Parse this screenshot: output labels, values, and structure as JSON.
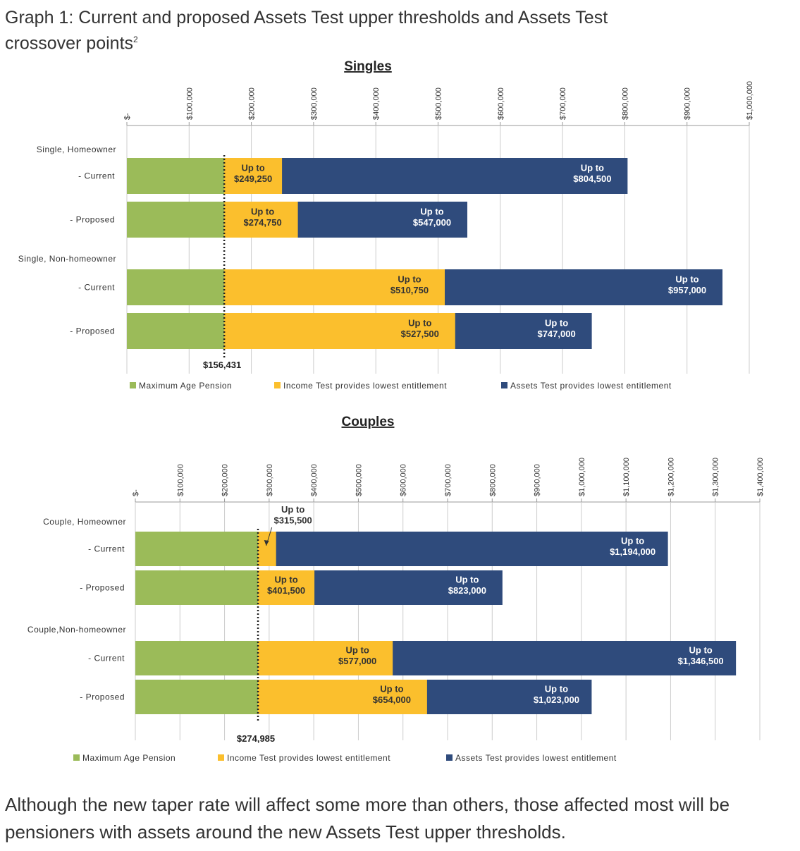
{
  "title": "Graph 1: Current and proposed Assets Test upper thresholds and Assets Test crossover points",
  "title_superscript": "2",
  "chart_data": [
    {
      "type": "bar",
      "orientation": "horizontal",
      "title": "Singles",
      "groups": [
        "Single, Homeowner",
        "Single, Non-homeowner"
      ],
      "categories": [
        "- Current",
        "- Proposed",
        "- Current",
        "- Proposed"
      ],
      "series": [
        {
          "name": "Maximum Age Pension",
          "color": "#9bbb59",
          "values": [
            156431,
            156431,
            156431,
            156431
          ]
        },
        {
          "name": "Income Test provides lowest entitlement",
          "color": "#fbbf2d",
          "values": [
            249250,
            274750,
            510750,
            527500
          ],
          "value_labels": [
            "Up to $249,250",
            "Up to $274,750",
            "Up to $510,750",
            "Up to $527,500"
          ]
        },
        {
          "name": "Assets Test provides lowest entitlement",
          "color": "#2f4b7c",
          "values": [
            804500,
            547000,
            957000,
            747000
          ],
          "value_labels": [
            "Up to $804,500",
            "Up to $547,000",
            "Up to $957,000",
            "Up to $747,000"
          ]
        }
      ],
      "crossover": {
        "value": 156431,
        "label": "$156,431"
      },
      "xlim": [
        0,
        1000000
      ],
      "xticks": [
        {
          "value": 0,
          "label": "$-"
        },
        {
          "value": 100000,
          "label": "$100,000"
        },
        {
          "value": 200000,
          "label": "$200,000"
        },
        {
          "value": 300000,
          "label": "$300,000"
        },
        {
          "value": 400000,
          "label": "$400,000"
        },
        {
          "value": 500000,
          "label": "$500,000"
        },
        {
          "value": 600000,
          "label": "$600,000"
        },
        {
          "value": 700000,
          "label": "$700,000"
        },
        {
          "value": 800000,
          "label": "$800,000"
        },
        {
          "value": 900000,
          "label": "$900,000"
        },
        {
          "value": 1000000,
          "label": "$1,000,000"
        }
      ],
      "grid": true,
      "legend": "bottom"
    },
    {
      "type": "bar",
      "orientation": "horizontal",
      "title": "Couples",
      "groups": [
        "Couple, Homeowner",
        "Couple,Non-homeowner"
      ],
      "categories": [
        "- Current",
        "- Proposed",
        "- Current",
        "- Proposed"
      ],
      "series": [
        {
          "name": "Maximum Age Pension",
          "color": "#9bbb59",
          "values": [
            274985,
            274985,
            274985,
            274985
          ]
        },
        {
          "name": "Income Test provides lowest entitlement",
          "color": "#fbbf2d",
          "values": [
            315500,
            401500,
            577000,
            654000
          ],
          "value_labels": [
            "Up to $315,500",
            "Up to $401,500",
            "Up to $577,000",
            "Up to $654,000"
          ]
        },
        {
          "name": "Assets Test provides lowest entitlement",
          "color": "#2f4b7c",
          "values": [
            1194000,
            823000,
            1346500,
            1023000
          ],
          "value_labels": [
            "Up to $1,194,000",
            "Up to $823,000",
            "Up to $1,346,500",
            "Up to $1,023,000"
          ]
        }
      ],
      "crossover": {
        "value": 274985,
        "label": "$274,985"
      },
      "xlim": [
        0,
        1400000
      ],
      "xticks": [
        {
          "value": 0,
          "label": "$-"
        },
        {
          "value": 100000,
          "label": "$100,000"
        },
        {
          "value": 200000,
          "label": "$200,000"
        },
        {
          "value": 300000,
          "label": "$300,000"
        },
        {
          "value": 400000,
          "label": "$400,000"
        },
        {
          "value": 500000,
          "label": "$500,000"
        },
        {
          "value": 600000,
          "label": "$600,000"
        },
        {
          "value": 700000,
          "label": "$700,000"
        },
        {
          "value": 800000,
          "label": "$800,000"
        },
        {
          "value": 900000,
          "label": "$900,000"
        },
        {
          "value": 1000000,
          "label": "$1,000,000"
        },
        {
          "value": 1100000,
          "label": "$1,100,000"
        },
        {
          "value": 1200000,
          "label": "$1,200,000"
        },
        {
          "value": 1300000,
          "label": "$1,300,000"
        },
        {
          "value": 1400000,
          "label": "$1,400,000"
        }
      ],
      "grid": true,
      "legend": "bottom"
    }
  ],
  "paragraph": "Although the new taper rate will affect some more than others, those affected most will be pensioners with assets around the new Assets Test upper thresholds."
}
